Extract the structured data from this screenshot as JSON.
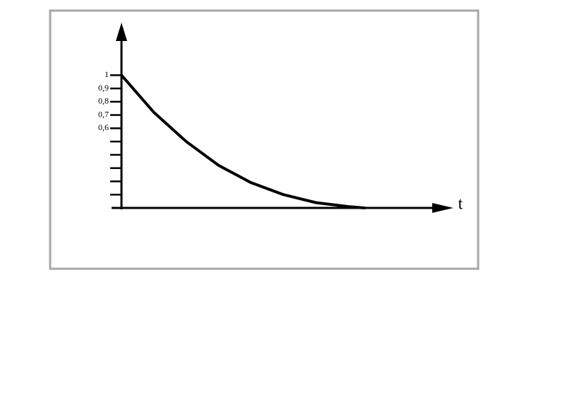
{
  "chart_data": {
    "type": "line",
    "x_label": "t",
    "x": [
      0,
      1,
      2,
      3,
      4,
      5,
      6,
      7,
      7.5
    ],
    "series": [
      {
        "color": "#000000",
        "values": [
          1,
          0.72,
          0.5,
          0.32,
          0.19,
          0.1,
          0.04,
          0.01,
          0
        ]
      }
    ],
    "xlim": [
      0,
      10.2
    ],
    "ylim": [
      0,
      1.38
    ],
    "yticks": [
      {
        "value": 1,
        "label": "1"
      },
      {
        "value": 0.9,
        "label": "0,9"
      },
      {
        "value": 0.8,
        "label": "0,8"
      },
      {
        "value": 0.7,
        "label": "0,7"
      },
      {
        "value": 0.6,
        "label": "0,6"
      },
      {
        "value": 0.5,
        "label": null
      },
      {
        "value": 0.4,
        "label": null
      },
      {
        "value": 0.3,
        "label": null
      },
      {
        "value": 0.2,
        "label": null
      },
      {
        "value": 0.1,
        "label": null
      }
    ]
  }
}
